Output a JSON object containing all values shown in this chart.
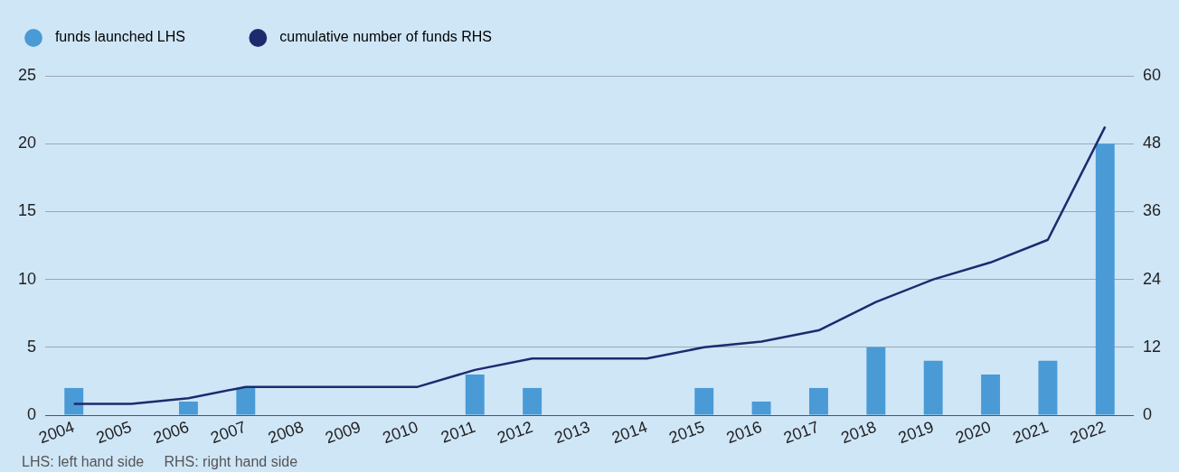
{
  "chart_data": {
    "type": "bar",
    "categories": [
      "2004",
      "2005",
      "2006",
      "2007",
      "2008",
      "2009",
      "2010",
      "2011",
      "2012",
      "2013",
      "2014",
      "2015",
      "2016",
      "2017",
      "2018",
      "2019",
      "2020",
      "2021",
      "2022"
    ],
    "series": [
      {
        "name": "funds launched LHS",
        "color": "#4a9ad6",
        "values": [
          2,
          0,
          1,
          2,
          0,
          0,
          0,
          3,
          2,
          0,
          0,
          2,
          1,
          2,
          5,
          4,
          3,
          4,
          20
        ]
      },
      {
        "name": "cumulative number of funds RHS",
        "type": "line",
        "axis": "y2",
        "color": "#1e2a6e",
        "values": [
          2,
          2,
          3,
          5,
          5,
          5,
          5,
          8,
          10,
          10,
          10,
          12,
          13,
          15,
          20,
          24,
          27,
          31,
          51
        ]
      }
    ],
    "ylim": [
      0,
      25
    ],
    "yticks": [
      0,
      5,
      10,
      15,
      20,
      25
    ],
    "y2lim": [
      0,
      60
    ],
    "y2ticks": [
      0,
      12,
      24,
      36,
      48,
      60
    ],
    "grid": "y",
    "legend": "top left",
    "marker": "none",
    "line_style": "solid",
    "annotations": [
      "LHS: left hand side     RHS: right hand side"
    ]
  }
}
